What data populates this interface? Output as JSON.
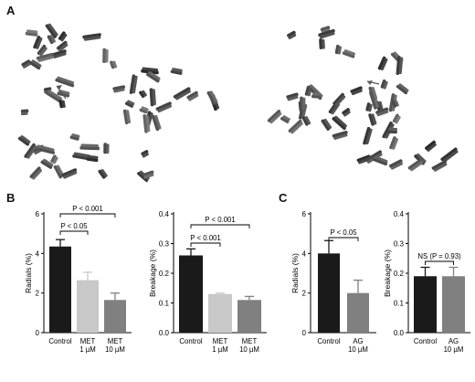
{
  "figure": {
    "panel_a_label": "A",
    "panel_b_label": "B",
    "panel_c_label": "C"
  },
  "chart_data": [
    {
      "type": "bar",
      "panel": "B",
      "ylabel": "Radials (%)",
      "ylim": [
        0,
        6
      ],
      "yticks": [
        0,
        2,
        4,
        6
      ],
      "categories": [
        [
          "Control"
        ],
        [
          "MET",
          "1 µM"
        ],
        [
          "MET",
          "10 µM"
        ]
      ],
      "values": [
        4.35,
        2.65,
        1.65
      ],
      "errors": [
        0.35,
        0.4,
        0.35
      ],
      "colors": [
        "#1a1a1a",
        "#c8c8c8",
        "#808080"
      ],
      "annotations": [
        {
          "text": "P < 0.05",
          "from": 0,
          "to": 1
        },
        {
          "text": "P < 0.001",
          "from": 0,
          "to": 2
        }
      ]
    },
    {
      "type": "bar",
      "panel": "B",
      "ylabel": "Breakage (%)",
      "ylim": [
        0,
        0.4
      ],
      "yticks": [
        0.0,
        0.1,
        0.2,
        0.3,
        0.4
      ],
      "categories": [
        [
          "Control"
        ],
        [
          "MET",
          "1 µM"
        ],
        [
          "MET",
          "10 µM"
        ]
      ],
      "values": [
        0.26,
        0.13,
        0.11
      ],
      "errors": [
        0.022,
        0.003,
        0.012
      ],
      "colors": [
        "#1a1a1a",
        "#c8c8c8",
        "#808080"
      ],
      "annotations": [
        {
          "text": "P < 0.001",
          "from": 0,
          "to": 1
        },
        {
          "text": "P < 0.001",
          "from": 0,
          "to": 2
        }
      ]
    },
    {
      "type": "bar",
      "panel": "C",
      "ylabel": "Radials (%)",
      "ylim": [
        0,
        6
      ],
      "yticks": [
        0,
        2,
        4,
        6
      ],
      "categories": [
        [
          "Control"
        ],
        [
          "AG",
          "10 µM"
        ]
      ],
      "values": [
        4.0,
        2.0
      ],
      "errors": [
        0.65,
        0.65
      ],
      "colors": [
        "#1a1a1a",
        "#808080"
      ],
      "annotations": [
        {
          "text": "P < 0.05",
          "from": 0,
          "to": 1
        }
      ]
    },
    {
      "type": "bar",
      "panel": "C",
      "ylabel": "Breakage (%)",
      "ylim": [
        0,
        0.4
      ],
      "yticks": [
        0.0,
        0.1,
        0.2,
        0.3,
        0.4
      ],
      "categories": [
        [
          "Control"
        ],
        [
          "AG",
          "10 µM"
        ]
      ],
      "values": [
        0.19,
        0.19
      ],
      "errors": [
        0.03,
        0.03
      ],
      "colors": [
        "#1a1a1a",
        "#808080"
      ],
      "annotations": [
        {
          "text": "NS (P = 0.93)",
          "from": 0,
          "to": 1
        }
      ]
    }
  ]
}
